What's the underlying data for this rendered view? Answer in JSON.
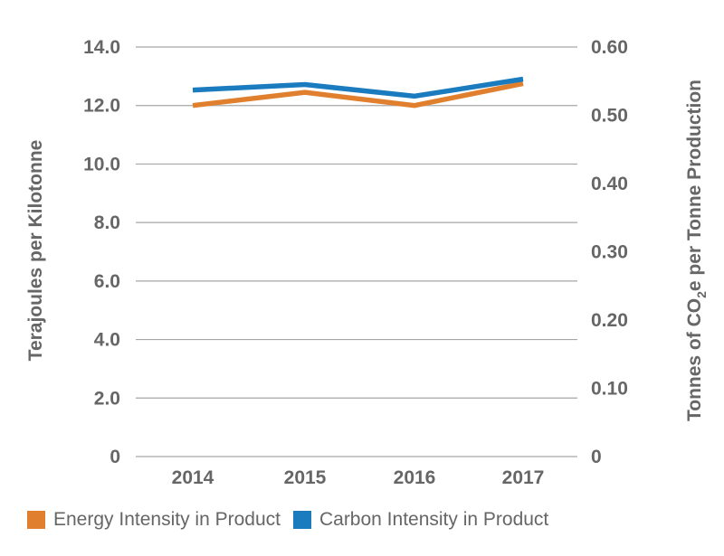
{
  "chart_data": {
    "type": "line",
    "categories": [
      "2014",
      "2015",
      "2016",
      "2017"
    ],
    "y_left": {
      "label": "Terajoules per Kilotonne",
      "range": [
        0,
        14
      ],
      "ticks": [
        "0",
        "2.0",
        "4.0",
        "6.0",
        "8.0",
        "10.0",
        "12.0",
        "14.0"
      ]
    },
    "y_right": {
      "label_parts": [
        "Tonnes of CO",
        "2",
        "e per Tonne Production"
      ],
      "range": [
        0,
        0.6
      ],
      "ticks": [
        "0",
        "0.10",
        "0.20",
        "0.30",
        "0.40",
        "0.50",
        "0.60"
      ]
    },
    "series": [
      {
        "name": "Energy Intensity in Product",
        "color": "#E0802E",
        "axis": "left",
        "values": [
          12.0,
          12.45,
          12.0,
          12.75
        ]
      },
      {
        "name": "Carbon Intensity in Product",
        "color": "#1A7BBF",
        "axis": "right",
        "values": [
          0.537,
          0.545,
          0.528,
          0.553
        ]
      }
    ],
    "grid": true,
    "legend_position": "bottom"
  }
}
